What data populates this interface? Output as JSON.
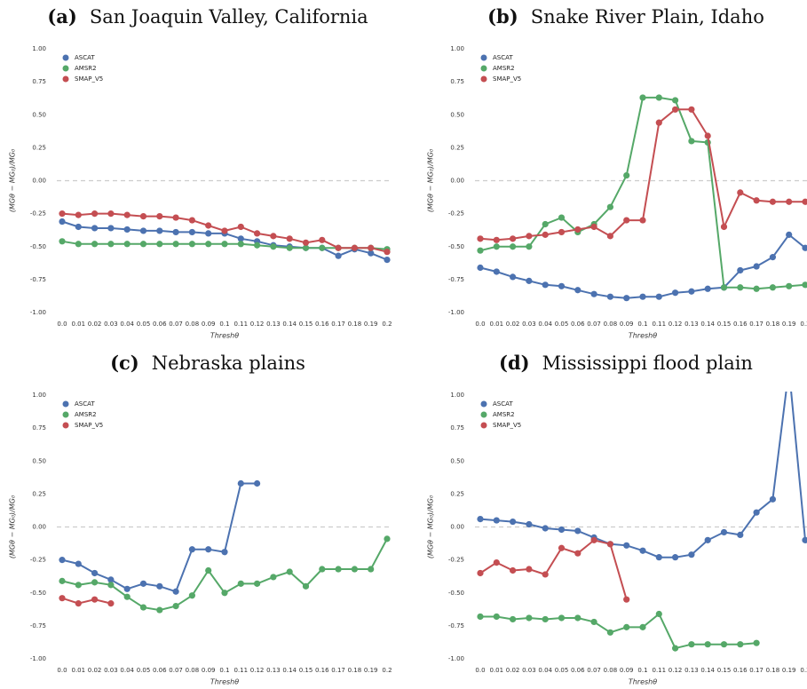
{
  "chart_data": [
    {
      "type": "line",
      "panel_label": "(a)",
      "title": "San Joaquin Valley, California",
      "xlabel": "Threshθ",
      "ylabel": "(MGθ − MG₀)/MG₀",
      "categories": [
        "0.0",
        "0.01",
        "0.02",
        "0.03",
        "0.04",
        "0.05",
        "0.06",
        "0.07",
        "0.08",
        "0.09",
        "0.1",
        "0.11",
        "0.12",
        "0.13",
        "0.14",
        "0.15",
        "0.16",
        "0.17",
        "0.18",
        "0.19",
        "0.2"
      ],
      "ylim": [
        -1,
        1
      ],
      "yticks": [
        {
          "value": 1,
          "label": "1.00"
        },
        {
          "value": 0.75,
          "label": "0.75"
        },
        {
          "value": 0.5,
          "label": "0.50"
        },
        {
          "value": 0.25,
          "label": "0.25"
        },
        {
          "value": 0,
          "label": "0.00"
        },
        {
          "value": -0.25,
          "label": "-0.25"
        },
        {
          "value": -0.5,
          "label": "-0.50"
        },
        {
          "value": -0.75,
          "label": "-0.75"
        },
        {
          "value": -1,
          "label": "-1.00"
        }
      ],
      "reference_line": 0,
      "legend": "upper-left",
      "series": [
        {
          "name": "ASCAT",
          "color": "#4c72b0",
          "values": [
            -0.31,
            -0.35,
            -0.36,
            -0.36,
            -0.37,
            -0.38,
            -0.38,
            -0.39,
            -0.39,
            -0.4,
            -0.4,
            -0.44,
            -0.46,
            -0.49,
            -0.5,
            -0.51,
            -0.51,
            -0.57,
            -0.52,
            -0.55,
            -0.6
          ]
        },
        {
          "name": "AMSR2",
          "color": "#55a868",
          "values": [
            -0.46,
            -0.48,
            -0.48,
            -0.48,
            -0.48,
            -0.48,
            -0.48,
            -0.48,
            -0.48,
            -0.48,
            -0.48,
            -0.48,
            -0.49,
            -0.5,
            -0.51,
            -0.51,
            -0.51,
            -0.51,
            -0.51,
            -0.51,
            -0.52
          ]
        },
        {
          "name": "SMAP_V5",
          "color": "#c44e52",
          "values": [
            -0.25,
            -0.26,
            -0.25,
            -0.25,
            -0.26,
            -0.27,
            -0.27,
            -0.28,
            -0.3,
            -0.34,
            -0.38,
            -0.35,
            -0.4,
            -0.42,
            -0.44,
            -0.47,
            -0.45,
            -0.51,
            -0.51,
            -0.51,
            -0.54
          ]
        }
      ]
    },
    {
      "type": "line",
      "panel_label": "(b)",
      "title": "Snake River Plain, Idaho",
      "xlabel": "Threshθ",
      "ylabel": "(MGθ − MG₀)/MG₀",
      "categories": [
        "0.0",
        "0.01",
        "0.02",
        "0.03",
        "0.04",
        "0.05",
        "0.06",
        "0.07",
        "0.08",
        "0.09",
        "0.1",
        "0.11",
        "0.12",
        "0.13",
        "0.14",
        "0.15",
        "0.16",
        "0.17",
        "0.18",
        "0.19",
        "0.2"
      ],
      "ylim": [
        -1,
        1
      ],
      "yticks": [
        {
          "value": 1,
          "label": "1.00"
        },
        {
          "value": 0.75,
          "label": "0.75"
        },
        {
          "value": 0.5,
          "label": "0.50"
        },
        {
          "value": 0.25,
          "label": "0.25"
        },
        {
          "value": 0,
          "label": "0.00"
        },
        {
          "value": -0.25,
          "label": "-0.25"
        },
        {
          "value": -0.5,
          "label": "-0.50"
        },
        {
          "value": -0.75,
          "label": "-0.75"
        },
        {
          "value": -1,
          "label": "-1.00"
        }
      ],
      "reference_line": 0,
      "legend": "upper-left",
      "series": [
        {
          "name": "ASCAT",
          "color": "#4c72b0",
          "values": [
            -0.66,
            -0.69,
            -0.73,
            -0.76,
            -0.79,
            -0.8,
            -0.83,
            -0.86,
            -0.88,
            -0.89,
            -0.88,
            -0.88,
            -0.85,
            -0.84,
            -0.82,
            -0.81,
            -0.68,
            -0.65,
            -0.58,
            -0.41,
            -0.51
          ]
        },
        {
          "name": "AMSR2",
          "color": "#55a868",
          "values": [
            -0.53,
            -0.5,
            -0.5,
            -0.5,
            -0.33,
            -0.28,
            -0.39,
            -0.33,
            -0.2,
            0.04,
            0.63,
            0.63,
            0.61,
            0.3,
            0.29,
            -0.81,
            -0.81,
            -0.82,
            -0.81,
            -0.8,
            -0.79
          ]
        },
        {
          "name": "SMAP_V5",
          "color": "#c44e52",
          "values": [
            -0.44,
            -0.45,
            -0.44,
            -0.42,
            -0.41,
            -0.39,
            -0.37,
            -0.35,
            -0.42,
            -0.3,
            -0.3,
            0.44,
            0.54,
            0.54,
            0.34,
            -0.35,
            -0.09,
            -0.15,
            -0.16,
            -0.16,
            -0.16
          ]
        }
      ]
    },
    {
      "type": "line",
      "panel_label": "(c)",
      "title": "Nebraska plains",
      "xlabel": "Threshθ",
      "ylabel": "(MGθ − MG₀)/MG₀",
      "categories": [
        "0.0",
        "0.01",
        "0.02",
        "0.03",
        "0.04",
        "0.05",
        "0.06",
        "0.07",
        "0.08",
        "0.09",
        "0.1",
        "0.11",
        "0.12",
        "0.13",
        "0.14",
        "0.15",
        "0.16",
        "0.17",
        "0.18",
        "0.19",
        "0.2"
      ],
      "ylim": [
        -1,
        1
      ],
      "yticks": [
        {
          "value": 1,
          "label": "1.00"
        },
        {
          "value": 0.75,
          "label": "0.75"
        },
        {
          "value": 0.5,
          "label": "0.50"
        },
        {
          "value": 0.25,
          "label": "0.25"
        },
        {
          "value": 0,
          "label": "0.00"
        },
        {
          "value": -0.25,
          "label": "-0.25"
        },
        {
          "value": -0.5,
          "label": "-0.50"
        },
        {
          "value": -0.75,
          "label": "-0.75"
        },
        {
          "value": -1,
          "label": "-1.00"
        }
      ],
      "reference_line": 0,
      "legend": "upper-left",
      "series": [
        {
          "name": "ASCAT",
          "color": "#4c72b0",
          "values": [
            -0.25,
            -0.28,
            -0.35,
            -0.4,
            -0.47,
            -0.43,
            -0.45,
            -0.49,
            -0.17,
            -0.17,
            -0.19,
            0.33,
            0.33,
            null,
            null,
            null,
            null,
            null,
            null,
            null,
            null
          ]
        },
        {
          "name": "AMSR2",
          "color": "#55a868",
          "values": [
            -0.41,
            -0.44,
            -0.42,
            -0.44,
            -0.53,
            -0.61,
            -0.63,
            -0.6,
            -0.52,
            -0.33,
            -0.5,
            -0.43,
            -0.43,
            -0.38,
            -0.34,
            -0.45,
            -0.32,
            -0.32,
            -0.32,
            -0.32,
            -0.09
          ]
        },
        {
          "name": "SMAP_V5",
          "color": "#c44e52",
          "values": [
            -0.54,
            -0.58,
            -0.55,
            -0.58,
            null,
            null,
            null,
            null,
            null,
            null,
            null,
            null,
            null,
            null,
            null,
            null,
            null,
            null,
            null,
            null,
            null
          ]
        }
      ]
    },
    {
      "type": "line",
      "panel_label": "(d)",
      "title": "Mississippi flood plain",
      "xlabel": "Threshθ",
      "ylabel": "(MGθ − MG₀)/MG₀",
      "categories": [
        "0.0",
        "0.01",
        "0.02",
        "0.03",
        "0.04",
        "0.05",
        "0.06",
        "0.07",
        "0.08",
        "0.09",
        "0.1",
        "0.11",
        "0.12",
        "0.13",
        "0.14",
        "0.15",
        "0.16",
        "0.17",
        "0.18",
        "0.19",
        "0.2"
      ],
      "ylim": [
        -1,
        1
      ],
      "yticks": [
        {
          "value": 1,
          "label": "1.00"
        },
        {
          "value": 0.75,
          "label": "0.75"
        },
        {
          "value": 0.5,
          "label": "0.50"
        },
        {
          "value": 0.25,
          "label": "0.25"
        },
        {
          "value": 0,
          "label": "0.00"
        },
        {
          "value": -0.25,
          "label": "-0.25"
        },
        {
          "value": -0.5,
          "label": "-0.50"
        },
        {
          "value": -0.75,
          "label": "-0.75"
        },
        {
          "value": -1,
          "label": "-1.00"
        }
      ],
      "reference_line": 0,
      "legend": "upper-left",
      "series": [
        {
          "name": "ASCAT",
          "color": "#4c72b0",
          "values": [
            0.06,
            0.05,
            0.04,
            0.02,
            -0.01,
            -0.02,
            -0.03,
            -0.08,
            -0.13,
            -0.14,
            -0.18,
            -0.23,
            -0.23,
            -0.21,
            -0.1,
            -0.04,
            -0.06,
            0.11,
            0.21,
            1.2,
            -0.1
          ]
        },
        {
          "name": "AMSR2",
          "color": "#55a868",
          "values": [
            -0.68,
            -0.68,
            -0.7,
            -0.69,
            -0.7,
            -0.69,
            -0.69,
            -0.72,
            -0.8,
            -0.76,
            -0.76,
            -0.66,
            -0.92,
            -0.89,
            -0.89,
            -0.89,
            -0.89,
            -0.88,
            null,
            null,
            null
          ]
        },
        {
          "name": "SMAP_V5",
          "color": "#c44e52",
          "values": [
            -0.35,
            -0.27,
            -0.33,
            -0.32,
            -0.36,
            -0.16,
            -0.2,
            -0.1,
            -0.13,
            -0.55,
            null,
            null,
            null,
            null,
            null,
            null,
            null,
            null,
            null,
            null,
            null
          ]
        }
      ]
    }
  ]
}
